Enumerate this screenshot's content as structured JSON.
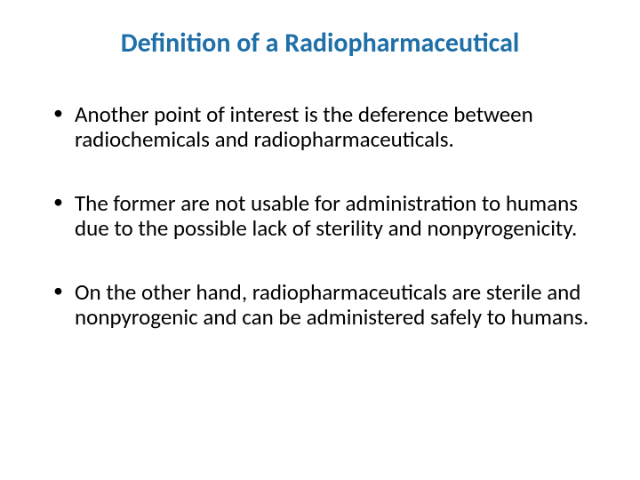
{
  "slide": {
    "title": "Definition of a Radiopharmaceutical",
    "title_color": "#1f6fa8",
    "title_fontsize": 30,
    "body_color": "#000000",
    "body_fontsize": 25,
    "background_color": "#ffffff",
    "bullets": [
      "Another point of interest is the deference between radiochemicals and radiopharmaceuticals.",
      "The former are not usable for administration to humans due to the possible lack of sterility and nonpyrogenicity.",
      " On the other hand, radiopharmaceuticals are sterile and nonpyrogenic and can be administered safely to humans."
    ]
  }
}
